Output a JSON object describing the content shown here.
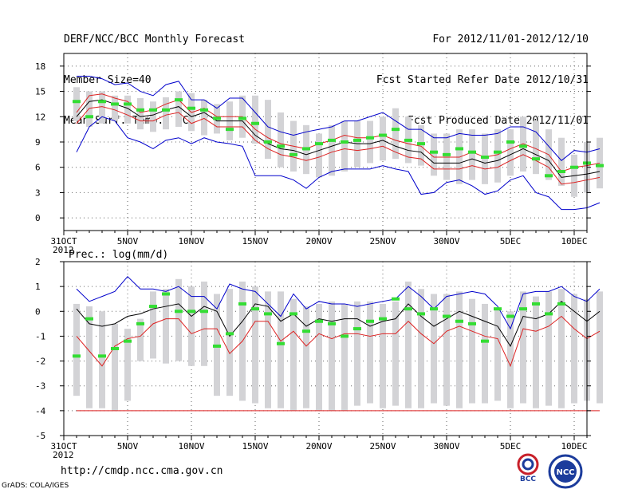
{
  "header": {
    "title": "DERF/NCC/BCC Monthly Forecast",
    "member_size": "Member Size=40",
    "variable": "Mean Surf. Temp.: °C",
    "period": "For 2012/11/01-2012/12/10",
    "started": "Fcst Started Refer Date 2012/10/31",
    "produced": "Fcst Produced Date 2012/11/01"
  },
  "footer": {
    "url": "http://cmdp.ncc.cma.gov.cn",
    "credit": "GrADS: COLA/IGES",
    "logo_bcc_text": "BCC",
    "logo_ncc_text": "NCC"
  },
  "colors": {
    "max": "#0000cc",
    "min_env": "#0000cc",
    "mean": "#000000",
    "spread": "#dd2222",
    "bar": "#d3d3d6",
    "obs": "#33dd33"
  },
  "chart_data": [
    {
      "type": "line",
      "title": "Mean Surf. Temp.: °C",
      "x_tick_labels": [
        "31OCT",
        "5NOV",
        "10NOV",
        "15NOV",
        "20NOV",
        "25NOV",
        "30NOV",
        "5DEC",
        "10DEC"
      ],
      "x_tick_days": [
        0,
        5,
        10,
        15,
        20,
        25,
        30,
        35,
        40
      ],
      "x_year_label": "2012",
      "xlim": [
        0,
        41
      ],
      "ylim": [
        -1.5,
        19.5
      ],
      "y_ticks": [
        0,
        3,
        6,
        9,
        12,
        15,
        18
      ],
      "box_low": [
        11.5,
        10.8,
        11.2,
        11.5,
        11.2,
        10.5,
        10.2,
        10.5,
        10.8,
        10.3,
        9.8,
        10.0,
        9.2,
        9.5,
        8.8,
        7.0,
        6.0,
        5.5,
        5.2,
        4.8,
        5.0,
        5.5,
        6.0,
        6.5,
        6.8,
        7.0,
        6.5,
        6.2,
        5.0,
        4.5,
        4.0,
        4.5,
        4.0,
        4.2,
        5.0,
        5.5,
        5.2,
        4.5,
        3.8,
        2.5,
        3.0,
        3.5
      ],
      "box_high": [
        15.5,
        15.0,
        15.0,
        14.5,
        14.5,
        14.2,
        13.8,
        14.3,
        15.0,
        14.8,
        14.0,
        13.5,
        13.8,
        14.5,
        14.5,
        14.0,
        12.5,
        11.5,
        11.0,
        10.0,
        11.0,
        11.5,
        11.5,
        11.5,
        12.0,
        13.0,
        12.0,
        11.0,
        10.0,
        10.0,
        10.5,
        10.5,
        10.0,
        10.5,
        10.5,
        12.0,
        11.5,
        10.5,
        9.5,
        7.5,
        9.0,
        9.5
      ],
      "series": [
        {
          "name": "max",
          "color": "#0000cc",
          "values": [
            16.8,
            16.8,
            16.5,
            15.8,
            16.0,
            15.0,
            14.5,
            15.8,
            16.2,
            14.0,
            14.0,
            13.0,
            14.2,
            14.2,
            12.5,
            10.8,
            10.2,
            9.8,
            10.2,
            10.5,
            10.8,
            11.5,
            11.5,
            12.0,
            12.5,
            11.5,
            10.5,
            10.5,
            9.5,
            9.5,
            10.0,
            9.8,
            9.8,
            10.0,
            10.8,
            10.8,
            10.2,
            8.5,
            6.8,
            8.0,
            7.8,
            8.2
          ]
        },
        {
          "name": "mean_plus",
          "color": "#dd2222",
          "values": [
            12.5,
            14.5,
            14.7,
            14.2,
            13.8,
            12.5,
            12.8,
            13.5,
            14.0,
            12.5,
            13.0,
            12.0,
            12.0,
            12.0,
            10.5,
            9.5,
            8.8,
            8.5,
            8.2,
            8.8,
            9.2,
            9.8,
            9.5,
            9.5,
            9.8,
            9.2,
            8.8,
            8.5,
            7.2,
            7.2,
            7.2,
            7.8,
            7.2,
            7.5,
            8.2,
            8.8,
            8.2,
            7.5,
            5.5,
            6.0,
            6.2,
            6.5
          ]
        },
        {
          "name": "mean",
          "color": "#000000",
          "values": [
            12.0,
            13.8,
            14.0,
            13.5,
            13.0,
            12.0,
            12.2,
            12.8,
            13.2,
            12.0,
            12.5,
            11.5,
            11.5,
            11.5,
            9.8,
            8.8,
            8.2,
            8.0,
            7.5,
            8.0,
            8.5,
            9.0,
            8.8,
            8.8,
            9.2,
            8.5,
            8.0,
            7.8,
            6.5,
            6.5,
            6.5,
            7.0,
            6.5,
            6.8,
            7.5,
            8.2,
            7.5,
            6.8,
            4.8,
            5.0,
            5.2,
            5.5
          ]
        },
        {
          "name": "mean_minus",
          "color": "#dd2222",
          "values": [
            11.2,
            13.0,
            13.2,
            12.8,
            12.2,
            11.5,
            11.5,
            12.2,
            12.5,
            11.2,
            11.8,
            10.8,
            10.8,
            10.8,
            9.2,
            8.2,
            7.5,
            7.2,
            6.8,
            7.2,
            7.8,
            8.2,
            8.0,
            8.2,
            8.5,
            7.8,
            7.2,
            7.0,
            5.8,
            5.8,
            5.8,
            6.2,
            5.8,
            6.0,
            6.8,
            7.5,
            6.8,
            6.0,
            4.0,
            4.2,
            4.5,
            4.8
          ]
        },
        {
          "name": "min",
          "color": "#0000cc",
          "values": [
            7.8,
            10.8,
            12.0,
            11.5,
            9.5,
            9.0,
            8.2,
            9.2,
            9.5,
            8.8,
            9.5,
            9.0,
            8.8,
            8.5,
            5.0,
            5.0,
            5.0,
            4.5,
            3.5,
            4.8,
            5.5,
            5.8,
            5.8,
            5.8,
            6.2,
            5.8,
            5.5,
            2.8,
            3.0,
            4.2,
            4.5,
            3.8,
            2.8,
            3.2,
            4.5,
            5.0,
            3.0,
            2.5,
            1.0,
            1.0,
            1.2,
            1.8
          ]
        }
      ],
      "obs_markers": [
        13.8,
        12.0,
        13.8,
        13.5,
        13.5,
        12.8,
        12.8,
        12.8,
        14.0,
        13.0,
        12.8,
        11.8,
        10.5,
        11.8,
        11.2,
        9.0,
        8.5,
        7.5,
        8.2,
        8.8,
        9.2,
        9.0,
        9.2,
        9.5,
        9.8,
        10.5,
        9.2,
        8.8,
        7.8,
        7.5,
        8.2,
        7.8,
        7.2,
        7.8,
        9.0,
        8.5,
        7.0,
        5.0,
        5.5,
        6.0,
        6.5,
        6.2
      ]
    },
    {
      "type": "line",
      "title": "Prec.: log(mm/d)",
      "x_tick_labels": [
        "31OCT",
        "5NOV",
        "10NOV",
        "15NOV",
        "20NOV",
        "25NOV",
        "30NOV",
        "5DEC",
        "10DEC"
      ],
      "x_tick_days": [
        0,
        5,
        10,
        15,
        20,
        25,
        30,
        35,
        40
      ],
      "x_year_label": "2012",
      "xlim": [
        0,
        41
      ],
      "ylim": [
        -5,
        2
      ],
      "y_ticks": [
        -5,
        -4,
        -3,
        -2,
        -1,
        0,
        1,
        2
      ],
      "box_low": [
        -3.4,
        -3.9,
        -3.9,
        -4.0,
        -3.6,
        -2.0,
        -1.9,
        -2.1,
        -2.0,
        -2.2,
        -2.2,
        -3.4,
        -3.4,
        -3.6,
        -3.7,
        -3.9,
        -3.9,
        -4.0,
        -3.9,
        -4.0,
        -4.0,
        -4.0,
        -3.8,
        -3.7,
        -3.9,
        -3.8,
        -3.9,
        -3.9,
        -3.7,
        -3.8,
        -3.9,
        -3.7,
        -3.7,
        -3.6,
        -3.9,
        -3.7,
        -3.9,
        -3.8,
        -3.9,
        -3.7,
        -3.6,
        -3.7
      ],
      "box_high": [
        0.3,
        0.2,
        0.0,
        -0.5,
        -0.7,
        -0.3,
        0.8,
        0.9,
        1.3,
        1.0,
        1.2,
        0.7,
        0.9,
        1.2,
        1.0,
        0.8,
        0.8,
        0.5,
        0.2,
        0.3,
        0.4,
        0.3,
        0.4,
        0.4,
        0.3,
        0.4,
        1.2,
        0.9,
        0.7,
        0.7,
        0.8,
        0.5,
        0.3,
        0.1,
        0.0,
        0.8,
        0.6,
        0.8,
        0.9,
        0.7,
        0.5,
        0.8
      ],
      "series": [
        {
          "name": "max",
          "color": "#0000cc",
          "values": [
            0.9,
            0.4,
            0.6,
            0.8,
            1.4,
            0.9,
            0.9,
            0.8,
            1.0,
            0.6,
            0.6,
            0.1,
            1.1,
            0.9,
            0.8,
            0.3,
            -0.2,
            0.7,
            0.1,
            0.4,
            0.3,
            0.3,
            0.2,
            0.3,
            0.4,
            0.5,
            1.0,
            0.6,
            0.1,
            0.6,
            0.7,
            0.8,
            0.7,
            0.2,
            -0.7,
            0.7,
            0.8,
            0.8,
            1.0,
            0.6,
            0.4,
            0.9
          ]
        },
        {
          "name": "mean",
          "color": "#000000",
          "values": [
            0.1,
            -0.5,
            -0.6,
            -0.5,
            -0.2,
            -0.1,
            0.1,
            0.2,
            0.3,
            -0.2,
            0.2,
            0.0,
            -1.0,
            -0.4,
            0.3,
            0.2,
            -0.4,
            -0.1,
            -0.6,
            -0.3,
            -0.4,
            -0.3,
            -0.3,
            -0.6,
            -0.4,
            -0.3,
            0.3,
            -0.2,
            -0.6,
            -0.3,
            0.0,
            -0.2,
            -0.4,
            -0.6,
            -1.4,
            -0.2,
            -0.3,
            -0.1,
            0.4,
            0.0,
            -0.4,
            0.0
          ]
        },
        {
          "name": "spread",
          "color": "#dd2222",
          "values": [
            -1.0,
            -1.6,
            -2.2,
            -1.4,
            -1.1,
            -1.0,
            -0.5,
            -0.3,
            -0.3,
            -0.9,
            -0.7,
            -0.7,
            -1.7,
            -1.2,
            -0.4,
            -0.4,
            -1.2,
            -0.8,
            -1.4,
            -0.9,
            -1.1,
            -0.9,
            -0.9,
            -1.0,
            -0.9,
            -0.9,
            -0.4,
            -0.9,
            -1.3,
            -0.8,
            -0.6,
            -0.8,
            -1.0,
            -1.1,
            -2.2,
            -0.7,
            -0.8,
            -0.6,
            -0.2,
            -0.7,
            -1.1,
            -0.8
          ]
        },
        {
          "name": "min",
          "color": "#dd2222",
          "values": [
            -4,
            -4,
            -4,
            -4,
            -4,
            -4,
            -4,
            -4,
            -4,
            -4,
            -4,
            -4,
            -4,
            -4,
            -4,
            -4,
            -4,
            -4,
            -4,
            -4,
            -4,
            -4,
            -4,
            -4,
            -4,
            -4,
            -4,
            -4,
            -4,
            -4,
            -4,
            -4,
            -4,
            -4,
            -4,
            -4,
            -4,
            -4,
            -4,
            -4,
            -4,
            -4
          ]
        }
      ],
      "obs_markers": [
        -1.8,
        -0.3,
        -1.8,
        -1.5,
        -1.2,
        -0.5,
        0.2,
        0.7,
        0.0,
        0.0,
        0.0,
        -1.4,
        -0.9,
        0.3,
        0.1,
        -0.1,
        -1.3,
        -0.1,
        -0.8,
        -0.4,
        -0.5,
        -1.0,
        -0.7,
        -0.4,
        -0.3,
        0.5,
        0.1,
        -0.1,
        0.1,
        -0.2,
        -0.4,
        -0.5,
        -1.2,
        0.1,
        -0.2,
        0.1,
        0.3,
        -0.1,
        0.3
      ]
    }
  ]
}
